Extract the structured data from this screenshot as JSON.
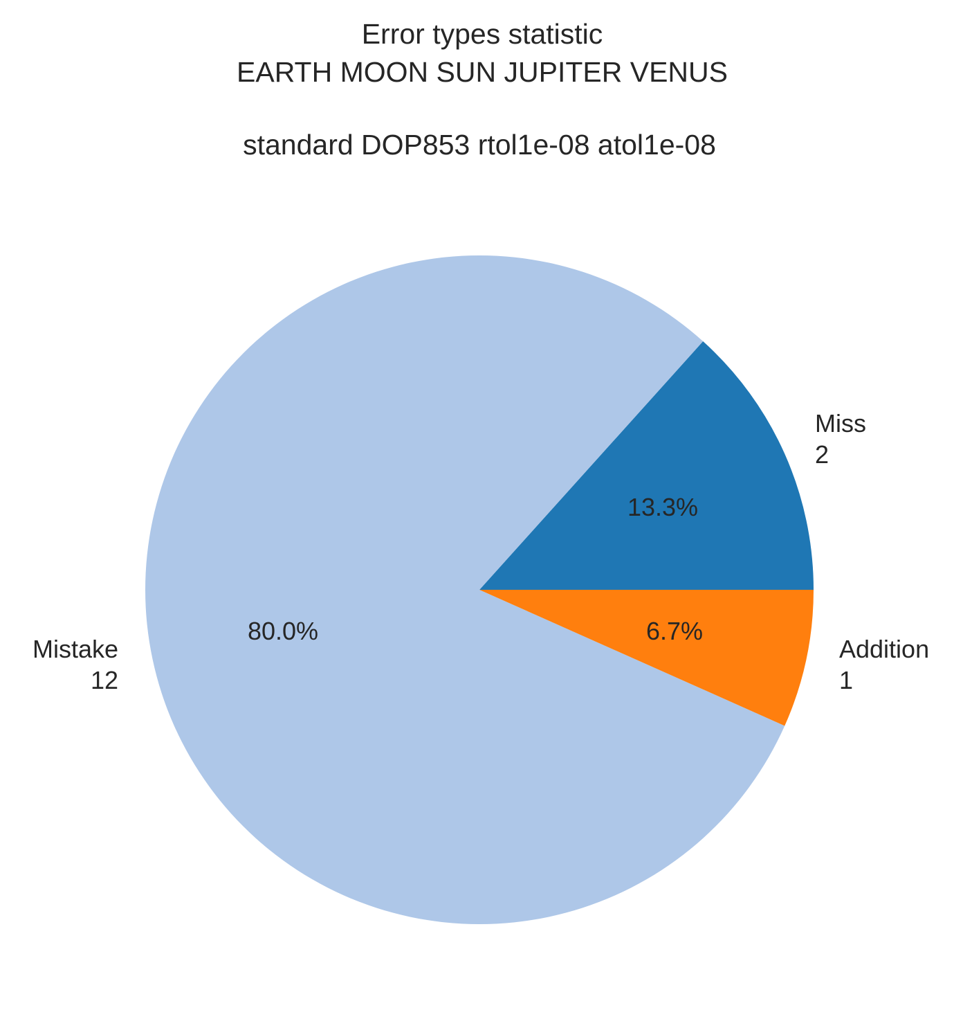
{
  "chart_data": {
    "type": "pie",
    "title": {
      "line1": "Error types statistic",
      "line2": "EARTH MOON SUN JUPITER VENUS",
      "line3": "standard DOP853 rtol1e-08 atol1e-08"
    },
    "slices": [
      {
        "name": "Miss",
        "value": 2,
        "percent_label": "13.3%",
        "color": "#1f77b4"
      },
      {
        "name": "Mistake",
        "value": 12,
        "percent_label": "80.0%",
        "color": "#aec7e8"
      },
      {
        "name": "Addition",
        "value": 1,
        "percent_label": "6.7%",
        "color": "#ff7f0e"
      }
    ],
    "total": 15,
    "start_angle_deg": 0,
    "direction": "counterclockwise"
  }
}
